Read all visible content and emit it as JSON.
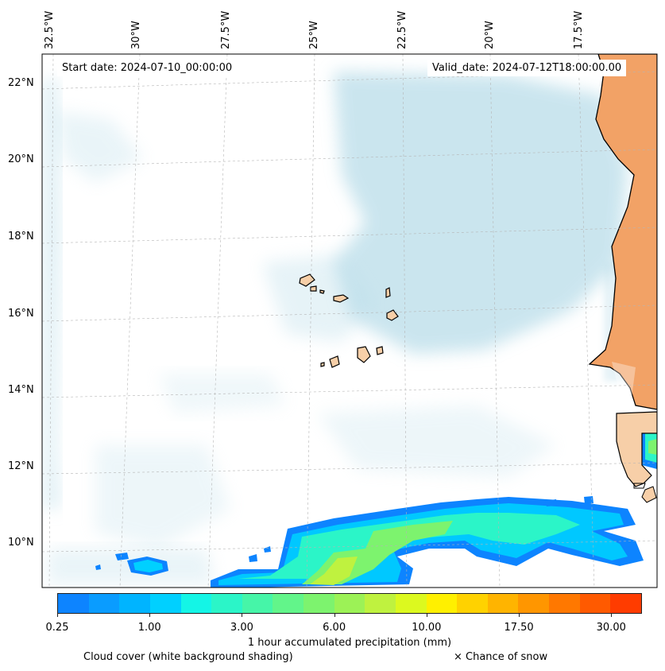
{
  "info": {
    "start_date": "Start date: 2024-07-10_00:00:00",
    "valid_date": "Valid_date: 2024-07-12T18:00:00.00"
  },
  "lon_labels": [
    "32.5°W",
    "30°W",
    "27.5°W",
    "25°W",
    "22.5°W",
    "20°W",
    "17.5°W"
  ],
  "lat_labels": [
    "22°N",
    "20°N",
    "18°N",
    "16°N",
    "14°N",
    "12°N",
    "10°N"
  ],
  "colorbar": {
    "title": "1 hour accumulated precipitation (mm)",
    "ticks": [
      "0.25",
      "1.00",
      "3.00",
      "6.00",
      "10.00",
      "17.50",
      "30.00"
    ],
    "colors": [
      "#0d84ff",
      "#0a9cff",
      "#00b4ff",
      "#00d0ff",
      "#14f5e6",
      "#2bf5c8",
      "#46f5a8",
      "#62f58a",
      "#7df36e",
      "#9cf256",
      "#bff23f",
      "#dcf91f",
      "#fff000",
      "#ffd200",
      "#ffb400",
      "#ff9600",
      "#ff7800",
      "#ff5a00",
      "#ff3c00"
    ]
  },
  "legend": {
    "cloud_cover": "Cloud cover (white background shading)",
    "snow": "× Chance of snow"
  },
  "colors": {
    "land": "#f2a266",
    "land_light": "#f7cfa8",
    "cloud": "#b9dde9",
    "precip_outline": "#0d84ff"
  }
}
